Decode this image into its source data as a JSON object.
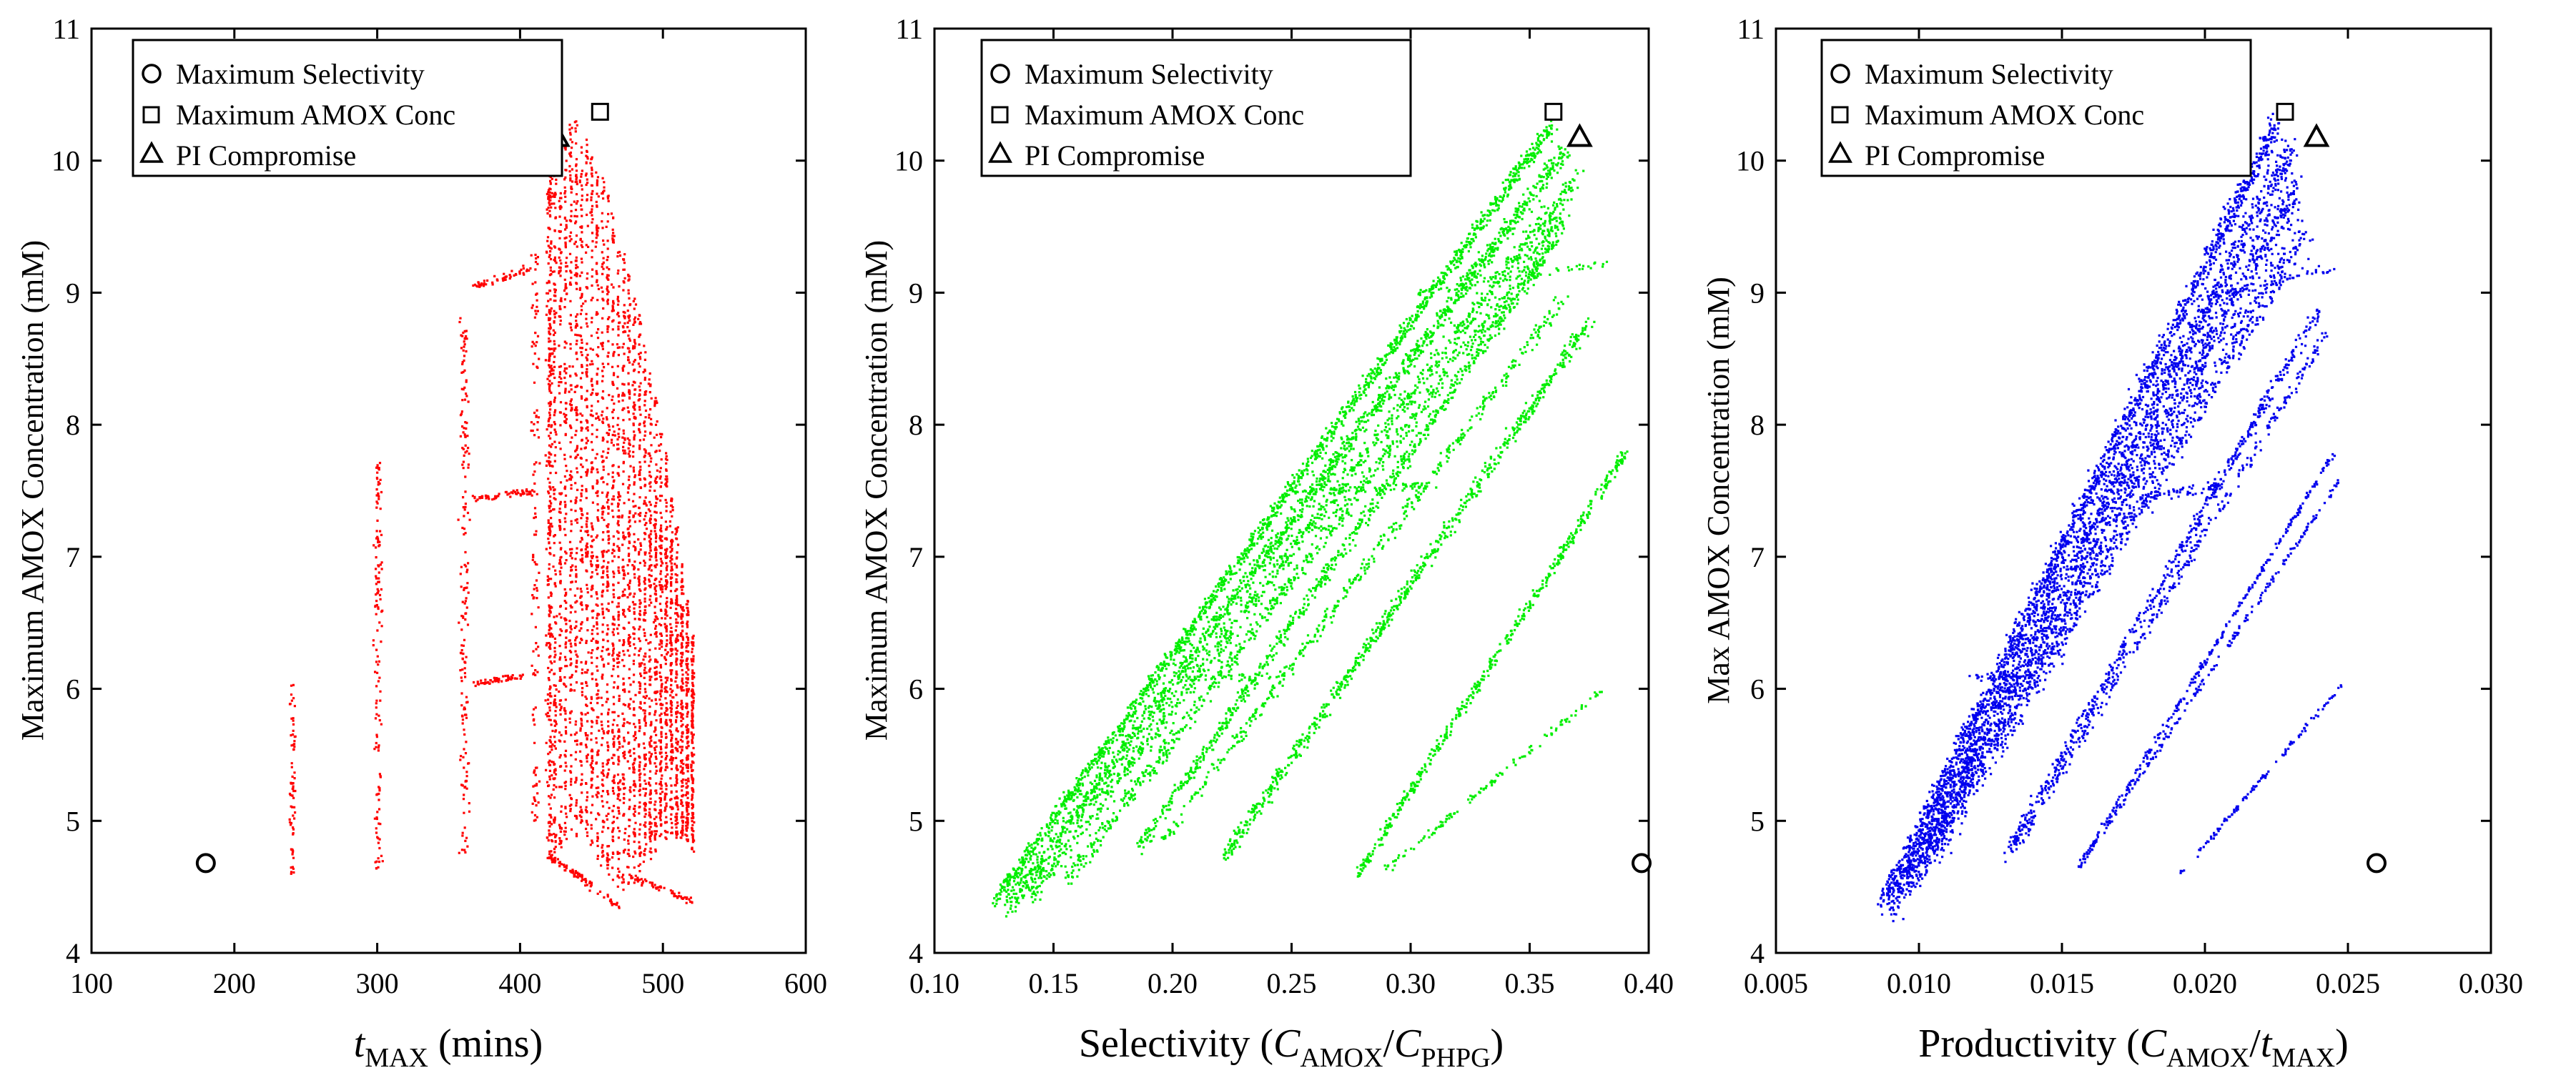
{
  "chart_data": [
    {
      "type": "scatter",
      "id": "tmax",
      "series_color": "#ff0000",
      "xlim": [
        100,
        600
      ],
      "ylim": [
        4,
        11
      ],
      "x_ticks": [
        "100",
        "200",
        "300",
        "400",
        "500",
        "600"
      ],
      "y_ticks": [
        "4",
        "5",
        "6",
        "7",
        "8",
        "9",
        "10",
        "11"
      ],
      "ylabel": "Maximum AMOX Concentration (mM)",
      "xlabel": {
        "main": "t",
        "sub": "MAX",
        "tail": " (mins)"
      },
      "legend": [
        {
          "marker": "circle",
          "label": "Maximum Selectivity"
        },
        {
          "marker": "square",
          "label": "Maximum AMOX Conc"
        },
        {
          "marker": "triangle",
          "label": "PI Compromise"
        }
      ],
      "markers": [
        {
          "label": "Maximum Selectivity",
          "x": 180,
          "y": 4.68
        },
        {
          "label": "Maximum AMOX Conc",
          "x": 456,
          "y": 10.37
        },
        {
          "label": "PI Compromise",
          "x": 426,
          "y": 10.18
        }
      ],
      "segments": [
        {
          "x0": 240,
          "x1": 240,
          "y0": 4.6,
          "y1": 6.05,
          "n": 70,
          "jx": 3,
          "jy": 0.02
        },
        {
          "x0": 300,
          "x1": 300,
          "y0": 4.65,
          "y1": 7.8,
          "n": 140,
          "jx": 4,
          "jy": 0.02
        },
        {
          "x0": 360,
          "x1": 360,
          "y0": 4.75,
          "y1": 8.8,
          "n": 180,
          "jx": 5,
          "jy": 0.02
        },
        {
          "x0": 365,
          "x1": 400,
          "y0": 6.05,
          "y1": 6.1,
          "n": 50,
          "jx": 3,
          "jy": 0.04
        },
        {
          "x0": 365,
          "x1": 410,
          "y0": 7.45,
          "y1": 7.5,
          "n": 60,
          "jx": 3,
          "jy": 0.04
        },
        {
          "x0": 365,
          "x1": 410,
          "y0": 9.05,
          "y1": 9.2,
          "n": 50,
          "jx": 3,
          "jy": 0.06
        },
        {
          "x0": 410,
          "x1": 410,
          "y0": 5.0,
          "y1": 9.3,
          "n": 120,
          "jx": 4,
          "jy": 0.02
        },
        {
          "x0": 420,
          "x1": 420,
          "y0": 4.7,
          "y1": 10.1,
          "n": 220,
          "jx": 4,
          "jy": 0.02
        },
        {
          "x0": 420,
          "x1": 470,
          "y0": 4.75,
          "y1": 4.35,
          "n": 80,
          "jx": 3,
          "jy": 0.04
        },
        {
          "x0": 475,
          "x1": 520,
          "y0": 4.6,
          "y1": 4.4,
          "n": 60,
          "jx": 3,
          "jy": 0.04
        }
      ],
      "bands": [
        {
          "x0": 420,
          "x1": 520,
          "ytop": [
            10.1,
            10.35,
            9.8,
            9.0,
            7.9,
            6.4
          ],
          "ybot": 4.7,
          "n": 4200,
          "jx": 1.5,
          "jy": 0.03
        }
      ]
    },
    {
      "type": "scatter",
      "id": "selectivity",
      "series_color": "#00ee00",
      "xlim": [
        0.1,
        0.4
      ],
      "ylim": [
        4,
        11
      ],
      "x_ticks": [
        "0.10",
        "0.15",
        "0.20",
        "0.25",
        "0.30",
        "0.35",
        "0.40"
      ],
      "y_ticks": [
        "4",
        "5",
        "6",
        "7",
        "8",
        "9",
        "10",
        "11"
      ],
      "ylabel": "Maximum AMOX Concentration (mM)",
      "xlabel": {
        "main": "Selectivity (",
        "v1": "C",
        "s1": "AMOX",
        "mid": "/",
        "v2": "C",
        "s2": "PHPG",
        "tail": ")"
      },
      "legend": [
        {
          "marker": "circle",
          "label": "Maximum Selectivity"
        },
        {
          "marker": "square",
          "label": "Maximum AMOX Conc"
        },
        {
          "marker": "triangle",
          "label": "PI Compromise"
        }
      ],
      "markers": [
        {
          "label": "Maximum Selectivity",
          "x": 0.397,
          "y": 4.68
        },
        {
          "label": "Maximum AMOX Conc",
          "x": 0.36,
          "y": 10.37
        },
        {
          "label": "PI Compromise",
          "x": 0.371,
          "y": 10.18
        }
      ],
      "segments": [
        {
          "x0": 0.125,
          "x1": 0.36,
          "y0": 4.4,
          "y1": 10.3,
          "n": 1400,
          "jx": 0.003,
          "jy": 0.08
        },
        {
          "x0": 0.13,
          "x1": 0.365,
          "y0": 4.35,
          "y1": 10.1,
          "n": 1400,
          "jx": 0.004,
          "jy": 0.1
        },
        {
          "x0": 0.14,
          "x1": 0.37,
          "y0": 4.45,
          "y1": 9.9,
          "n": 900,
          "jx": 0.004,
          "jy": 0.12
        },
        {
          "x0": 0.155,
          "x1": 0.365,
          "y0": 4.55,
          "y1": 9.6,
          "n": 700,
          "jx": 0.004,
          "jy": 0.1
        },
        {
          "x0": 0.185,
          "x1": 0.36,
          "y0": 4.8,
          "y1": 9.4,
          "n": 700,
          "jx": 0.003,
          "jy": 0.08
        },
        {
          "x0": 0.195,
          "x1": 0.365,
          "y0": 4.85,
          "y1": 9.0,
          "n": 400,
          "jx": 0.003,
          "jy": 0.08
        },
        {
          "x0": 0.22,
          "x1": 0.375,
          "y0": 4.7,
          "y1": 8.8,
          "n": 700,
          "jx": 0.003,
          "jy": 0.08
        },
        {
          "x0": 0.277,
          "x1": 0.39,
          "y0": 4.6,
          "y1": 7.8,
          "n": 450,
          "jx": 0.002,
          "jy": 0.07
        },
        {
          "x0": 0.29,
          "x1": 0.38,
          "y0": 4.65,
          "y1": 6.0,
          "n": 120,
          "jx": 0.002,
          "jy": 0.04
        },
        {
          "x0": 0.25,
          "x1": 0.31,
          "y0": 7.5,
          "y1": 7.55,
          "n": 80,
          "jx": 0.003,
          "jy": 0.05
        },
        {
          "x0": 0.3,
          "x1": 0.385,
          "y0": 9.0,
          "y1": 9.25,
          "n": 60,
          "jx": 0.003,
          "jy": 0.05
        },
        {
          "x0": 0.21,
          "x1": 0.24,
          "y0": 6.1,
          "y1": 6.1,
          "n": 25,
          "jx": 0.003,
          "jy": 0.04
        }
      ],
      "bands": []
    },
    {
      "type": "scatter",
      "id": "productivity",
      "series_color": "#0000ee",
      "xlim": [
        0.005,
        0.03
      ],
      "ylim": [
        4,
        11
      ],
      "x_ticks": [
        "0.005",
        "0.010",
        "0.015",
        "0.020",
        "0.025",
        "0.030"
      ],
      "y_ticks": [
        "4",
        "5",
        "6",
        "7",
        "8",
        "9",
        "10",
        "11"
      ],
      "ylabel": "Max AMOX Concentration (mM)",
      "xlabel": {
        "main": "Productivity (",
        "v1": "C",
        "s1": "AMOX",
        "mid": "/",
        "v2": "t",
        "s2": "MAX",
        "tail": ")"
      },
      "legend": [
        {
          "marker": "circle",
          "label": "Maximum Selectivity"
        },
        {
          "marker": "square",
          "label": "Maximum AMOX Conc"
        },
        {
          "marker": "triangle",
          "label": "PI Compromise"
        }
      ],
      "markers": [
        {
          "label": "Maximum Selectivity",
          "x": 0.026,
          "y": 4.68
        },
        {
          "label": "Maximum AMOX Conc",
          "x": 0.0228,
          "y": 10.37
        },
        {
          "label": "PI Compromise",
          "x": 0.0239,
          "y": 10.18
        }
      ],
      "segments": [
        {
          "x0": 0.0087,
          "x1": 0.0225,
          "y0": 4.4,
          "y1": 10.3,
          "n": 1500,
          "jx": 0.0003,
          "jy": 0.15
        },
        {
          "x0": 0.0089,
          "x1": 0.023,
          "y0": 4.35,
          "y1": 10.1,
          "n": 1500,
          "jx": 0.0004,
          "jy": 0.2
        },
        {
          "x0": 0.0095,
          "x1": 0.0232,
          "y0": 4.5,
          "y1": 9.8,
          "n": 1200,
          "jx": 0.0004,
          "jy": 0.2
        },
        {
          "x0": 0.0102,
          "x1": 0.0235,
          "y0": 4.7,
          "y1": 9.5,
          "n": 900,
          "jx": 0.0004,
          "jy": 0.2
        },
        {
          "x0": 0.013,
          "x1": 0.024,
          "y0": 4.75,
          "y1": 8.9,
          "n": 500,
          "jx": 0.0002,
          "jy": 0.08
        },
        {
          "x0": 0.0133,
          "x1": 0.0242,
          "y0": 4.8,
          "y1": 8.7,
          "n": 300,
          "jx": 0.0002,
          "jy": 0.08
        },
        {
          "x0": 0.0155,
          "x1": 0.0245,
          "y0": 4.65,
          "y1": 7.8,
          "n": 260,
          "jx": 0.0001,
          "jy": 0.03
        },
        {
          "x0": 0.0157,
          "x1": 0.0247,
          "y0": 4.7,
          "y1": 7.6,
          "n": 200,
          "jx": 0.0001,
          "jy": 0.03
        },
        {
          "x0": 0.019,
          "x1": 0.0248,
          "y0": 4.58,
          "y1": 6.05,
          "n": 110,
          "jx": 0.0001,
          "jy": 0.03
        },
        {
          "x0": 0.0178,
          "x1": 0.0205,
          "y0": 7.45,
          "y1": 7.55,
          "n": 60,
          "jx": 0.0003,
          "jy": 0.06
        },
        {
          "x0": 0.0205,
          "x1": 0.0245,
          "y0": 9.0,
          "y1": 9.2,
          "n": 50,
          "jx": 0.0003,
          "jy": 0.06
        },
        {
          "x0": 0.0118,
          "x1": 0.0135,
          "y0": 6.1,
          "y1": 6.1,
          "n": 30,
          "jx": 0.0003,
          "jy": 0.04
        }
      ],
      "bands": []
    }
  ]
}
